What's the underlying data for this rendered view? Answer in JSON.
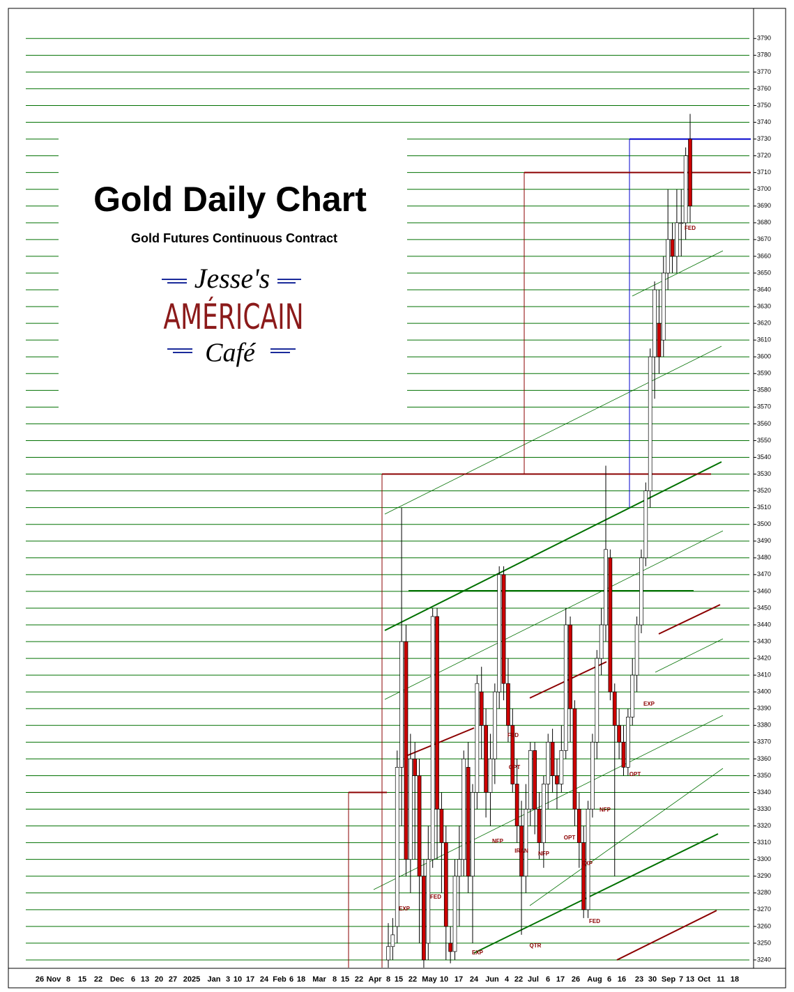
{
  "chart_data": {
    "type": "candlestick",
    "title": "Gold Daily Chart",
    "subtitle": "Gold Futures Continuous Contract",
    "logo": {
      "top": "Jesse's",
      "middle": "AMÉRICAIN",
      "bottom": "Café"
    },
    "x_labels": [
      "26",
      "Nov",
      "8",
      "15",
      "22",
      "Dec",
      "6",
      "13",
      "20",
      "27",
      "2025",
      "Jan",
      "3",
      "10",
      "17",
      "24",
      "Feb",
      "6",
      "18",
      "Mar",
      "8",
      "15",
      "22",
      "Apr",
      "8",
      "15",
      "22",
      "May",
      "10",
      "17",
      "24",
      "Jun",
      "4",
      "22",
      "Jul",
      "6",
      "17",
      "26",
      "Aug",
      "6",
      "16",
      "23",
      "30",
      "Sep",
      "7",
      "13",
      "Oct",
      "11",
      "18"
    ],
    "open": [
      3240,
      3248,
      3260,
      3355,
      3430,
      3300,
      3360,
      3350,
      3290,
      3250,
      3300,
      3445,
      3330,
      3310,
      3250,
      3245,
      3290,
      3300,
      3355,
      3290,
      3340,
      3400,
      3380,
      3340,
      3360,
      3400,
      3470,
      3405,
      3380,
      3345,
      3320,
      3290,
      3330,
      3365,
      3330,
      3310,
      3345,
      3370,
      3350,
      3345,
      3365,
      3440,
      3390,
      3330,
      3310,
      3270,
      3330,
      3370,
      3420,
      3440,
      3480,
      3400,
      3380,
      3370,
      3355,
      3385,
      3410,
      3440,
      3480,
      3520,
      3600,
      3620,
      3610,
      3650,
      3670,
      3660,
      3680,
      3680,
      3730
    ],
    "high": [
      3262,
      3265,
      3365,
      3510,
      3440,
      3375,
      3370,
      3360,
      3300,
      3320,
      3450,
      3450,
      3340,
      3320,
      3260,
      3300,
      3320,
      3365,
      3370,
      3345,
      3410,
      3415,
      3390,
      3375,
      3405,
      3475,
      3475,
      3420,
      3390,
      3360,
      3335,
      3345,
      3370,
      3370,
      3340,
      3350,
      3375,
      3378,
      3360,
      3380,
      3450,
      3445,
      3395,
      3340,
      3320,
      3335,
      3375,
      3425,
      3450,
      3535,
      3485,
      3405,
      3390,
      3380,
      3390,
      3420,
      3445,
      3485,
      3525,
      3605,
      3645,
      3640,
      3660,
      3700,
      3680,
      3700,
      3700,
      3725,
      3745
    ],
    "low": [
      3235,
      3240,
      3250,
      3320,
      3290,
      3280,
      3300,
      3250,
      3235,
      3240,
      3295,
      3300,
      3280,
      3240,
      3238,
      3240,
      3260,
      3290,
      3280,
      3250,
      3330,
      3360,
      3325,
      3320,
      3345,
      3390,
      3395,
      3370,
      3340,
      3310,
      3255,
      3280,
      3320,
      3315,
      3300,
      3295,
      3330,
      3340,
      3330,
      3340,
      3360,
      3370,
      3320,
      3295,
      3265,
      3265,
      3325,
      3360,
      3410,
      3430,
      3395,
      3290,
      3360,
      3350,
      3350,
      3380,
      3400,
      3435,
      3475,
      3510,
      3575,
      3590,
      3600,
      3640,
      3650,
      3650,
      3660,
      3670,
      3680
    ],
    "close": [
      3248,
      3255,
      3355,
      3430,
      3300,
      3360,
      3350,
      3290,
      3240,
      3300,
      3445,
      3330,
      3310,
      3260,
      3245,
      3290,
      3300,
      3360,
      3290,
      3340,
      3405,
      3380,
      3340,
      3360,
      3400,
      3470,
      3405,
      3380,
      3345,
      3320,
      3290,
      3330,
      3365,
      3330,
      3310,
      3345,
      3370,
      3350,
      3345,
      3365,
      3440,
      3390,
      3330,
      3310,
      3270,
      3330,
      3370,
      3420,
      3440,
      3485,
      3400,
      3380,
      3370,
      3355,
      3385,
      3410,
      3440,
      3480,
      3520,
      3600,
      3640,
      3600,
      3650,
      3670,
      3660,
      3680,
      3680,
      3720,
      3690
    ],
    "up_color": "#ffffff",
    "down_color": "#cc0000",
    "annotations": [
      "EXP",
      "FED",
      "EXP",
      "NFP",
      "FED",
      "OPT",
      "IRAN",
      "NFP",
      "QTR",
      "OPT",
      "EXP",
      "NFP",
      "FED",
      "OPT",
      "EXP",
      "FED"
    ],
    "levels": [
      {
        "value": 3730,
        "color": "#0000cc"
      },
      {
        "value": 3710,
        "color": "#8b0000"
      },
      {
        "value": 3530,
        "color": "#8b0000"
      },
      {
        "value": 3340,
        "color": "#8b0000"
      }
    ],
    "ylim": [
      3235,
      3808
    ],
    "yticks": [
      3240,
      3250,
      3260,
      3270,
      3280,
      3290,
      3300,
      3310,
      3320,
      3330,
      3340,
      3350,
      3360,
      3370,
      3380,
      3390,
      3400,
      3410,
      3420,
      3430,
      3440,
      3450,
      3460,
      3470,
      3480,
      3490,
      3500,
      3510,
      3520,
      3530,
      3540,
      3550,
      3560,
      3570,
      3580,
      3590,
      3600,
      3610,
      3620,
      3630,
      3640,
      3650,
      3660,
      3670,
      3680,
      3690,
      3700,
      3710,
      3720,
      3730,
      3740,
      3750,
      3760,
      3770,
      3780,
      3790
    ],
    "grid": true,
    "grid_color": "#007000"
  }
}
